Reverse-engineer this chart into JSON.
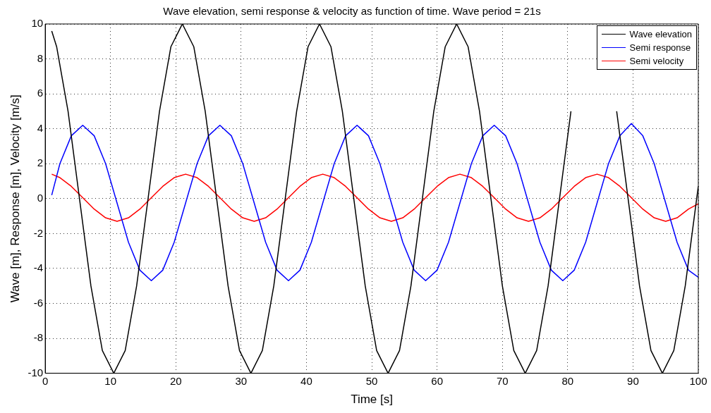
{
  "chart_data": {
    "type": "line",
    "title": "Wave elevation, semi response & velocity as function of time. Wave period = 21s",
    "xlabel": "Time [s]",
    "ylabel": "Wave [m], Response [m], Velocity [m/s]",
    "xlim": [
      0,
      100
    ],
    "xticks": [
      0,
      10,
      20,
      30,
      40,
      50,
      60,
      70,
      80,
      90,
      100
    ],
    "ylim": [
      -10,
      10
    ],
    "yticks": [
      -10,
      -8,
      -6,
      -4,
      -2,
      0,
      2,
      4,
      6,
      8,
      10
    ],
    "grid": true,
    "legend": "top right",
    "marker": "none",
    "line_style": "solid",
    "series": [
      {
        "name": "Wave elevation",
        "color": "#000000",
        "x": [
          1,
          1.75,
          3.5,
          5.25,
          7,
          8.75,
          10.5,
          12.25,
          14,
          15.75,
          17.5,
          19.25,
          21,
          22.75,
          24.5,
          26.25,
          28,
          29.75,
          31.5,
          33.25,
          35,
          36.75,
          38.5,
          40.25,
          42,
          43.75,
          45.5,
          47.25,
          49,
          50.75,
          52.5,
          54.25,
          56,
          57.75,
          59.5,
          61.25,
          63,
          64.75,
          66.5,
          68.25,
          70,
          71.75,
          73.5,
          75.25,
          77,
          78.75,
          80.5,
          82.25,
          84,
          85.75,
          87.5,
          89.25,
          91,
          92.75,
          94.5,
          96.25,
          98,
          99.75,
          100
        ],
        "values": [
          9.6,
          8.7,
          5,
          0,
          -5,
          -8.7,
          -10,
          -8.7,
          -5,
          0,
          5,
          8.7,
          10,
          8.7,
          5,
          0,
          -5,
          -8.7,
          -10,
          -8.7,
          -5,
          0,
          5,
          8.7,
          10,
          8.7,
          5,
          0,
          -5,
          -8.7,
          -10,
          -8.7,
          -5,
          0,
          5,
          8.7,
          10,
          8.7,
          5,
          0,
          -5,
          -8.7,
          -10,
          -8.7,
          -5,
          0,
          5,
          null,
          null,
          null,
          5,
          0,
          -5,
          -8.7,
          -10,
          -8.7,
          -5,
          0,
          0.7
        ]
      },
      {
        "name": "Semi response",
        "color": "#0000ff",
        "x": [
          1,
          2.25,
          4,
          5.75,
          7.5,
          9.25,
          11,
          12.75,
          14.5,
          16.25,
          18,
          19.75,
          21.5,
          23.25,
          25,
          26.75,
          28.5,
          30.25,
          32,
          33.75,
          35.5,
          37.25,
          39,
          40.75,
          42.5,
          44.25,
          46,
          47.75,
          49.5,
          51.25,
          53,
          54.75,
          56.5,
          58.25,
          60,
          61.75,
          63.5,
          65.25,
          67,
          68.75,
          70.5,
          72.25,
          74,
          75.75,
          77.5,
          79.25,
          81,
          82.75,
          84.5,
          86.25,
          88,
          89.75,
          91.5,
          93.25,
          95,
          96.75,
          98.5,
          100
        ],
        "values": [
          0.2,
          2,
          3.6,
          4.2,
          3.6,
          2,
          -0.25,
          -2.5,
          -4.1,
          -4.7,
          -4.1,
          -2.5,
          -0.25,
          2,
          3.6,
          4.2,
          3.6,
          2,
          -0.25,
          -2.5,
          -4.1,
          -4.7,
          -4.1,
          -2.5,
          -0.25,
          2,
          3.6,
          4.2,
          3.6,
          2,
          -0.25,
          -2.5,
          -4.1,
          -4.7,
          -4.1,
          -2.5,
          -0.25,
          2,
          3.6,
          4.2,
          3.6,
          2,
          -0.25,
          -2.5,
          -4.1,
          -4.7,
          -4.1,
          -2.5,
          -0.25,
          2,
          3.6,
          4.3,
          3.6,
          2,
          -0.25,
          -2.5,
          -4.1,
          -4.5
        ]
      },
      {
        "name": "Semi velocity",
        "color": "#ff0000",
        "x": [
          1,
          2.25,
          4,
          5.75,
          7.5,
          9.25,
          11,
          12.75,
          14.5,
          16.25,
          18,
          19.75,
          21.5,
          23.25,
          25,
          26.75,
          28.5,
          30.25,
          32,
          33.75,
          35.5,
          37.25,
          39,
          40.75,
          42.5,
          44.25,
          46,
          47.75,
          49.5,
          51.25,
          53,
          54.75,
          56.5,
          58.25,
          60,
          61.75,
          63.5,
          65.25,
          67,
          68.75,
          70.5,
          72.25,
          74,
          75.75,
          77.5,
          79.25,
          81,
          82.75,
          84.5,
          86.25,
          88,
          89.75,
          91.5,
          93.25,
          95,
          96.75,
          98.5,
          100
        ],
        "values": [
          1.4,
          1.2,
          0.7,
          0.05,
          -0.6,
          -1.1,
          -1.3,
          -1.1,
          -0.6,
          0.05,
          0.7,
          1.2,
          1.4,
          1.2,
          0.7,
          0.05,
          -0.6,
          -1.1,
          -1.3,
          -1.1,
          -0.6,
          0.05,
          0.7,
          1.2,
          1.4,
          1.2,
          0.7,
          0.05,
          -0.6,
          -1.1,
          -1.3,
          -1.1,
          -0.6,
          0.05,
          0.7,
          1.2,
          1.4,
          1.2,
          0.7,
          0.05,
          -0.6,
          -1.1,
          -1.3,
          -1.1,
          -0.6,
          0.05,
          0.7,
          1.2,
          1.4,
          1.2,
          0.7,
          0.05,
          -0.6,
          -1.1,
          -1.3,
          -1.1,
          -0.6,
          -0.3
        ]
      }
    ]
  }
}
